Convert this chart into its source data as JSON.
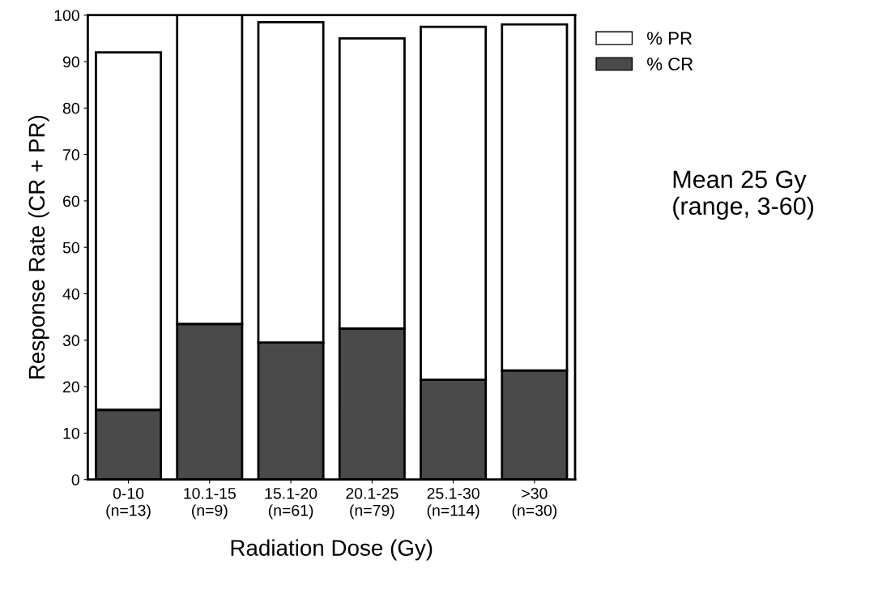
{
  "chart_data": {
    "type": "bar",
    "stacked": true,
    "xlabel": "Radiation Dose (Gy)",
    "ylabel": "Response Rate (CR + PR)",
    "categories": [
      "0-10\n(n=13)",
      "10.1-15\n(n=9)",
      "15.1-20\n(n=61)",
      "20.1-25\n(n=79)",
      "25.1-30\n(n=114)",
      ">30\n(n=30)"
    ],
    "series": [
      {
        "name": "% CR",
        "color": "#4a4a4a",
        "values": [
          15,
          33.5,
          29.5,
          32.5,
          21.5,
          23.5
        ]
      },
      {
        "name": "% PR",
        "color": "#ffffff",
        "values": [
          77,
          66.5,
          69,
          62.5,
          76,
          74.5
        ]
      }
    ],
    "ylim": [
      0,
      100
    ],
    "yticks": [
      0,
      10,
      20,
      30,
      40,
      50,
      60,
      70,
      80,
      90,
      100
    ],
    "grid": false,
    "legend": "top right",
    "annotations": [
      "Mean 25 Gy\n(range, 3-60)"
    ]
  }
}
